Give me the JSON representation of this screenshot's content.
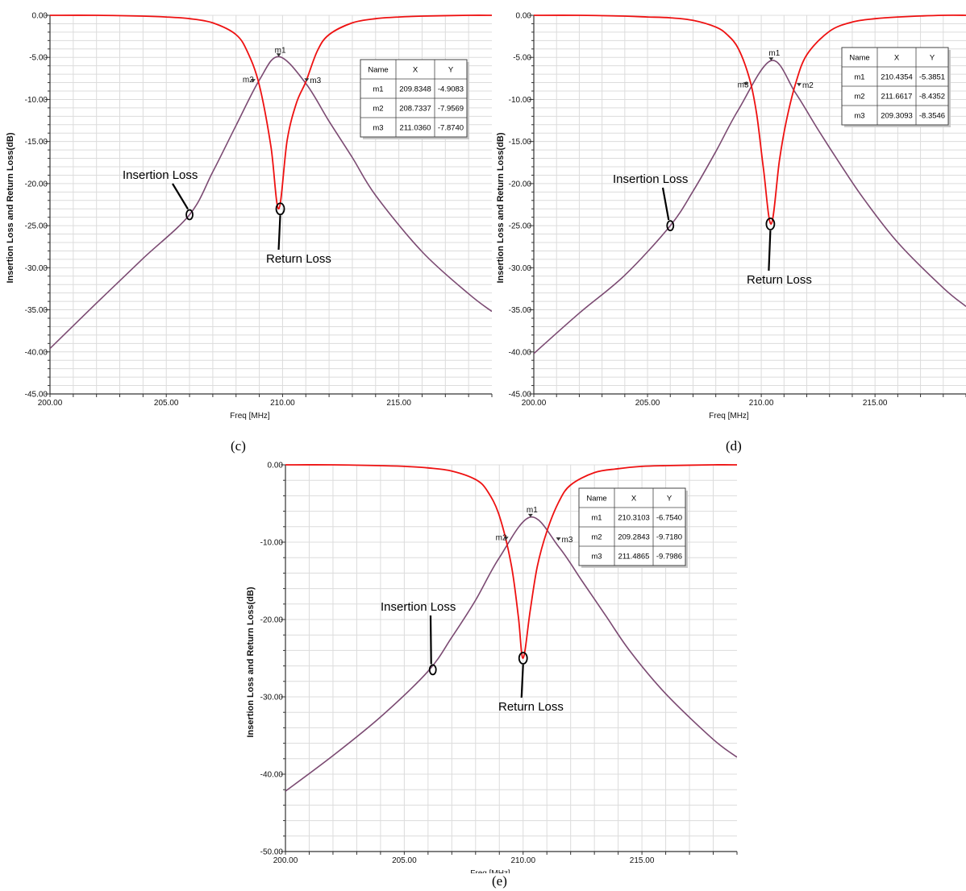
{
  "captions": [
    "(c)",
    "(d)",
    "(e)"
  ],
  "colors": {
    "insertion_loss": "#7b4a72",
    "return_loss": "#ee1111",
    "grid": "#dcdcdc",
    "plot_background": "#ffffff"
  },
  "chart_data": [
    {
      "type": "line",
      "caption": "(c)",
      "xlabel": "Freq [MHz]",
      "ylabel": "Insertion Loss and Return Loss(dB)",
      "xlim": [
        200,
        219
      ],
      "ylim": [
        -45,
        0
      ],
      "x_ticks": [
        200,
        205,
        210,
        215
      ],
      "x_tick_labels": [
        "200.00",
        "205.00",
        "210.00",
        "215.00"
      ],
      "y_ticks": [
        0,
        -5,
        -10,
        -15,
        -20,
        -25,
        -30,
        -35,
        -40,
        -45
      ],
      "y_tick_labels": [
        "0.00",
        "-5.00",
        "-10.00",
        "-15.00",
        "-20.00",
        "-25.00",
        "-30.00",
        "-35.00",
        "-40.00",
        "-45.00"
      ],
      "grid": true,
      "series": [
        {
          "name": "Insertion Loss",
          "x": [
            200,
            202,
            204,
            206,
            207,
            208,
            209,
            209.8348,
            211,
            212,
            213,
            214,
            216,
            218,
            219
          ],
          "y": [
            -39.6,
            -34.2,
            -28.9,
            -23.7,
            -18.6,
            -13.1,
            -7.7,
            -4.9083,
            -8.1,
            -12.6,
            -16.9,
            -21.4,
            -28.1,
            -33.1,
            -35.2
          ]
        },
        {
          "name": "Return Loss",
          "x": [
            200,
            202,
            204,
            205,
            206,
            207,
            208,
            208.5,
            209,
            209.5,
            209.8348,
            210.2,
            210.6,
            211,
            211.5,
            212,
            213,
            214,
            215,
            216,
            218,
            219
          ],
          "y": [
            0,
            0,
            -0.1,
            -0.2,
            -0.4,
            -0.9,
            -2.3,
            -4.4,
            -8.3,
            -15.6,
            -23.0,
            -14.8,
            -10.4,
            -7.9,
            -4.2,
            -2.3,
            -0.9,
            -0.4,
            -0.2,
            -0.1,
            0,
            0
          ]
        }
      ],
      "markers": [
        {
          "name": "m1",
          "x": "209.8348",
          "y": "-4.9083"
        },
        {
          "name": "m2",
          "x": "208.7337",
          "y": "-7.9569"
        },
        {
          "name": "m3",
          "x": "211.0360",
          "y": "-7.8740"
        }
      ],
      "marker_table_headers": [
        "Name",
        "X",
        "Y"
      ],
      "annotations": {
        "insertion_loss": "Insertion Loss",
        "return_loss": "Return Loss"
      },
      "annotation_points": {
        "insertion_loss": {
          "x": 206.0,
          "y": -23.7
        },
        "return_loss": {
          "x": 209.9,
          "y": -23.0
        }
      }
    },
    {
      "type": "line",
      "caption": "(d)",
      "xlabel": "Freq [MHz]",
      "ylabel": "Insertion Loss and Return Loss(dB)",
      "xlim": [
        200,
        219
      ],
      "ylim": [
        -45,
        0
      ],
      "x_ticks": [
        200,
        205,
        210,
        215
      ],
      "x_tick_labels": [
        "200.00",
        "205.00",
        "210.00",
        "215.00"
      ],
      "y_ticks": [
        0,
        -5,
        -10,
        -15,
        -20,
        -25,
        -30,
        -35,
        -40,
        -45
      ],
      "y_tick_labels": [
        "0.00",
        "-5.00",
        "-10.00",
        "-15.00",
        "-20.00",
        "-25.00",
        "-30.00",
        "-35.00",
        "-40.00",
        "-45.00"
      ],
      "grid": true,
      "series": [
        {
          "name": "Insertion Loss",
          "x": [
            200,
            202,
            204,
            206,
            207,
            208,
            209,
            210.4354,
            211.5,
            212.5,
            213.5,
            214.5,
            216,
            218,
            219
          ],
          "y": [
            -40.2,
            -35.4,
            -30.9,
            -25.0,
            -20.9,
            -16.2,
            -11.2,
            -5.3851,
            -9.2,
            -13.6,
            -17.8,
            -21.8,
            -27.0,
            -32.4,
            -34.6
          ]
        },
        {
          "name": "Return Loss",
          "x": [
            200,
            202,
            204,
            205,
            206,
            207,
            208,
            208.5,
            209,
            209.5,
            209.8,
            210.1,
            210.4354,
            210.8,
            211.1,
            211.5,
            212,
            213,
            214,
            215,
            216,
            218,
            219
          ],
          "y": [
            0,
            0,
            -0.1,
            -0.2,
            -0.3,
            -0.6,
            -1.4,
            -2.3,
            -4.0,
            -7.7,
            -11.8,
            -18.3,
            -24.8,
            -17.2,
            -12.6,
            -8.2,
            -4.7,
            -1.9,
            -0.8,
            -0.4,
            -0.2,
            0,
            0
          ]
        }
      ],
      "markers": [
        {
          "name": "m1",
          "x": "210.4354",
          "y": "-5.3851"
        },
        {
          "name": "m2",
          "x": "211.6617",
          "y": "-8.4352"
        },
        {
          "name": "m3",
          "x": "209.3093",
          "y": "-8.3546"
        }
      ],
      "marker_table_headers": [
        "Name",
        "X",
        "Y"
      ],
      "annotations": {
        "insertion_loss": "Insertion Loss",
        "return_loss": "Return Loss"
      },
      "annotation_points": {
        "insertion_loss": {
          "x": 206.0,
          "y": -25.0
        },
        "return_loss": {
          "x": 210.4,
          "y": -24.8
        }
      }
    },
    {
      "type": "line",
      "caption": "(e)",
      "xlabel": "Freq [MHz]",
      "ylabel": "Insertion Loss and Return Loss(dB)",
      "xlim": [
        200,
        219
      ],
      "ylim": [
        -50,
        0
      ],
      "x_ticks": [
        200,
        205,
        210,
        215
      ],
      "x_tick_labels": [
        "200.00",
        "205.00",
        "210.00",
        "215.00"
      ],
      "y_ticks": [
        0,
        -10,
        -20,
        -30,
        -40,
        -50
      ],
      "y_tick_labels": [
        "0.00",
        "-10.00",
        "-20.00",
        "-30.00",
        "-40.00",
        "-50.00"
      ],
      "grid": true,
      "series": [
        {
          "name": "Insertion Loss",
          "x": [
            200,
            202,
            204,
            206,
            207,
            208,
            209,
            210.3103,
            211.5,
            212.5,
            213.5,
            214.5,
            216,
            218,
            219
          ],
          "y": [
            -42.2,
            -37.6,
            -32.6,
            -26.7,
            -22.3,
            -17.5,
            -12.0,
            -6.754,
            -10.6,
            -15.1,
            -19.6,
            -24.1,
            -29.6,
            -35.5,
            -37.8
          ]
        },
        {
          "name": "Return Loss",
          "x": [
            200,
            202,
            204,
            205,
            206,
            207,
            208,
            208.5,
            209,
            209.5,
            209.8,
            210.0,
            210.3,
            210.6,
            211,
            211.5,
            212,
            213,
            214,
            215,
            216,
            218,
            219
          ],
          "y": [
            0,
            0,
            -0.1,
            -0.2,
            -0.4,
            -0.8,
            -1.9,
            -3.4,
            -6.6,
            -12.9,
            -19.6,
            -25.0,
            -18.8,
            -13.1,
            -8.6,
            -4.8,
            -2.6,
            -1.0,
            -0.5,
            -0.2,
            -0.1,
            0,
            0
          ]
        }
      ],
      "markers": [
        {
          "name": "m1",
          "x": "210.3103",
          "y": "-6.7540"
        },
        {
          "name": "m2",
          "x": "209.2843",
          "y": "-9.7180"
        },
        {
          "name": "m3",
          "x": "211.4865",
          "y": "-9.7986"
        }
      ],
      "marker_table_headers": [
        "Name",
        "X",
        "Y"
      ],
      "annotations": {
        "insertion_loss": "Insertion Loss",
        "return_loss": "Return Loss"
      },
      "annotation_points": {
        "insertion_loss": {
          "x": 206.2,
          "y": -26.5
        },
        "return_loss": {
          "x": 210.0,
          "y": -25.0
        }
      }
    }
  ]
}
